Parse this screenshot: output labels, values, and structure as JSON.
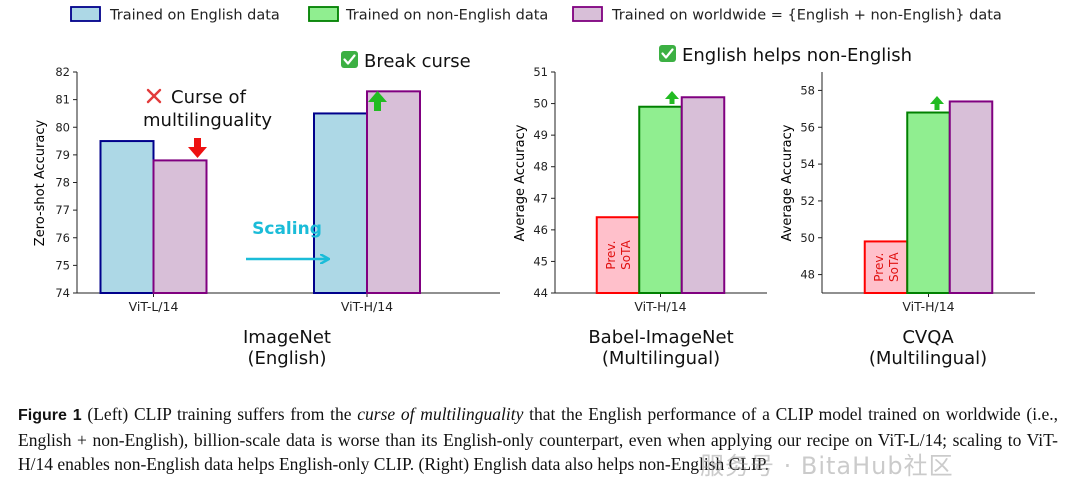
{
  "legend": {
    "english": "Trained on English data",
    "non_english": "Trained on non-English data",
    "worldwide": "Trained on worldwide = {English + non-English} data"
  },
  "colors": {
    "english_fill": "#add8e6",
    "english_edge": "#00008b",
    "non_english_fill": "#90ee90",
    "non_english_edge": "#008000",
    "worldwide_fill": "#d8bfd8",
    "worldwide_edge": "#800080",
    "sota_fill": "#ffc0cb",
    "sota_edge": "#ff0000",
    "arrow_up": "#22bb22",
    "arrow_down": "#ee1111",
    "scaling": "#1bbcd8"
  },
  "annotations": {
    "curse_line1": "Curse of",
    "curse_line2": "multilinguality",
    "break_curse": "Break curse",
    "english_helps": "English helps non-English",
    "scaling": "Scaling",
    "sota_line1": "Prev.",
    "sota_line2": "SoTA"
  },
  "chart_data": [
    {
      "type": "bar",
      "ylabel": "Zero-shot Accuracy",
      "title_line1": "ImageNet",
      "title_line2": "(English)",
      "ylim": [
        74,
        82
      ],
      "yticks": [
        74,
        75,
        76,
        77,
        78,
        79,
        80,
        81,
        82
      ],
      "categories": [
        "ViT-L/14",
        "ViT-H/14"
      ],
      "series": [
        {
          "name": "Trained on English data",
          "values": [
            79.5,
            80.5
          ]
        },
        {
          "name": "Trained on worldwide = {English + non-English} data",
          "values": [
            78.8,
            81.3
          ]
        }
      ]
    },
    {
      "type": "bar",
      "ylabel": "Average Accuracy",
      "title_line1": "Babel-ImageNet",
      "title_line2": "(Multilingual)",
      "ylim": [
        44,
        51
      ],
      "yticks": [
        44,
        45,
        46,
        47,
        48,
        49,
        50,
        51
      ],
      "categories": [
        "ViT-H/14"
      ],
      "series": [
        {
          "name": "Prev. SoTA",
          "values": [
            46.4
          ]
        },
        {
          "name": "Trained on non-English data",
          "values": [
            49.9
          ]
        },
        {
          "name": "Trained on worldwide = {English + non-English} data",
          "values": [
            50.2
          ]
        }
      ]
    },
    {
      "type": "bar",
      "ylabel": "Average Accuracy",
      "title_line1": "CVQA",
      "title_line2": "(Multilingual)",
      "ylim": [
        47,
        59
      ],
      "yticks": [
        48,
        50,
        52,
        54,
        56,
        58
      ],
      "categories": [
        "ViT-H/14"
      ],
      "series": [
        {
          "name": "Prev. SoTA",
          "values": [
            49.8
          ]
        },
        {
          "name": "Trained on non-English data",
          "values": [
            56.8
          ]
        },
        {
          "name": "Trained on worldwide = {English + non-English} data",
          "values": [
            57.4
          ]
        }
      ]
    }
  ],
  "caption": {
    "label": "Figure 1",
    "part1": " (Left) CLIP training suffers from the ",
    "emph": "curse of multilinguality",
    "part2": " that the English performance of a CLIP model trained on worldwide (i.e., English + non-English), billion-scale data is worse than its English-only counterpart, even when applying our recipe on ViT-L/14; scaling to ViT-H/14 enables non-English data helps English-only CLIP. (Right) English data also helps non-English CLIP."
  },
  "watermark": "服务号 · BitaHub社区"
}
